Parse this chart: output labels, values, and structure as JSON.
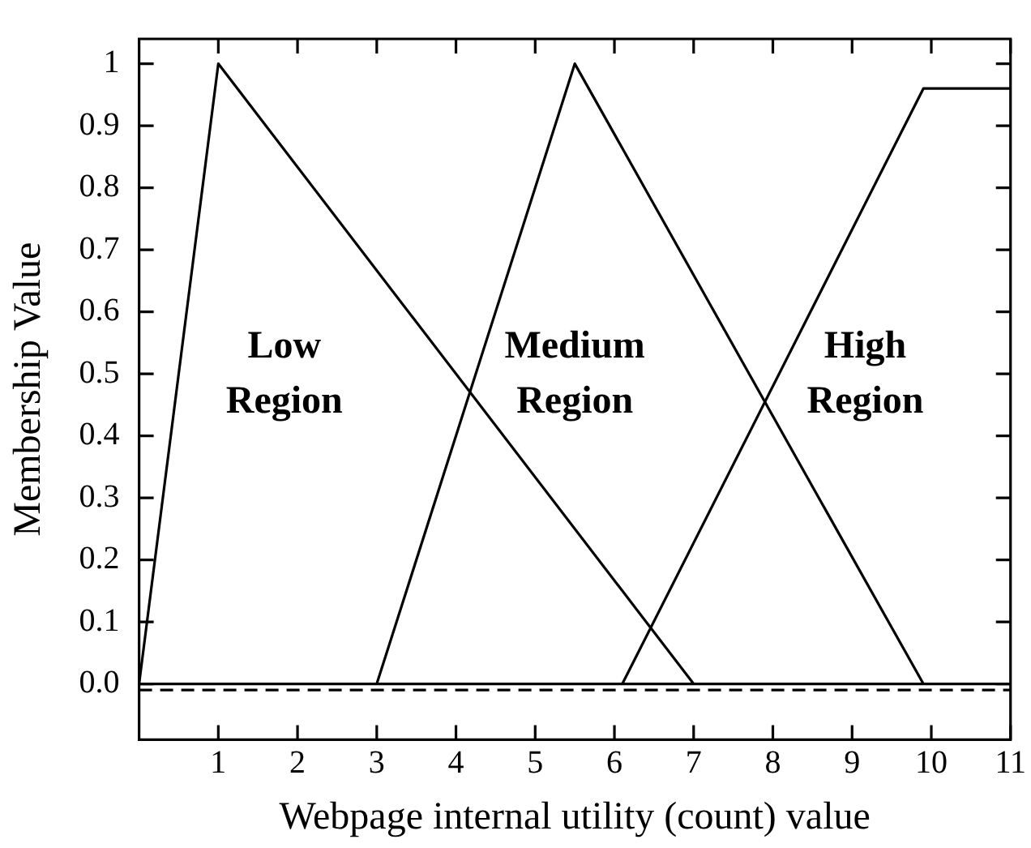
{
  "chart_data": {
    "type": "line",
    "xlabel": "Webpage internal utility (count) value",
    "ylabel": "Membership Value",
    "xlim": [
      0,
      11
    ],
    "xticks": [
      1,
      2,
      3,
      4,
      5,
      6,
      7,
      8,
      9,
      10,
      11
    ],
    "ylim": [
      -0.09,
      1.04
    ],
    "yticks": [
      {
        "value": 0,
        "label": "0.0"
      },
      0.1,
      0.2,
      0.3,
      0.4,
      0.5,
      0.6,
      0.7,
      0.8,
      0.9,
      1
    ],
    "series": [
      {
        "color": "#000000",
        "x": [
          0,
          1,
          7
        ],
        "values": [
          0,
          1,
          0
        ]
      },
      {
        "color": "#000000",
        "x": [
          3,
          5.5,
          9.9
        ],
        "values": [
          0,
          1,
          0
        ]
      },
      {
        "color": "#000000",
        "x": [
          6.1,
          9.9,
          11
        ],
        "values": [
          0,
          0.96,
          0.96
        ]
      }
    ],
    "ref_lines": [
      {
        "axis": "y",
        "value": 0,
        "line_style": "solid",
        "color": "#000000"
      },
      {
        "axis": "y",
        "value": -0.01,
        "line_style": "dashed",
        "color": "#000000"
      }
    ],
    "annotations": [
      "Low Region",
      "Medium Region",
      "High Region"
    ],
    "marker": "none",
    "line_style": "solid",
    "grid": false,
    "legend": false
  }
}
